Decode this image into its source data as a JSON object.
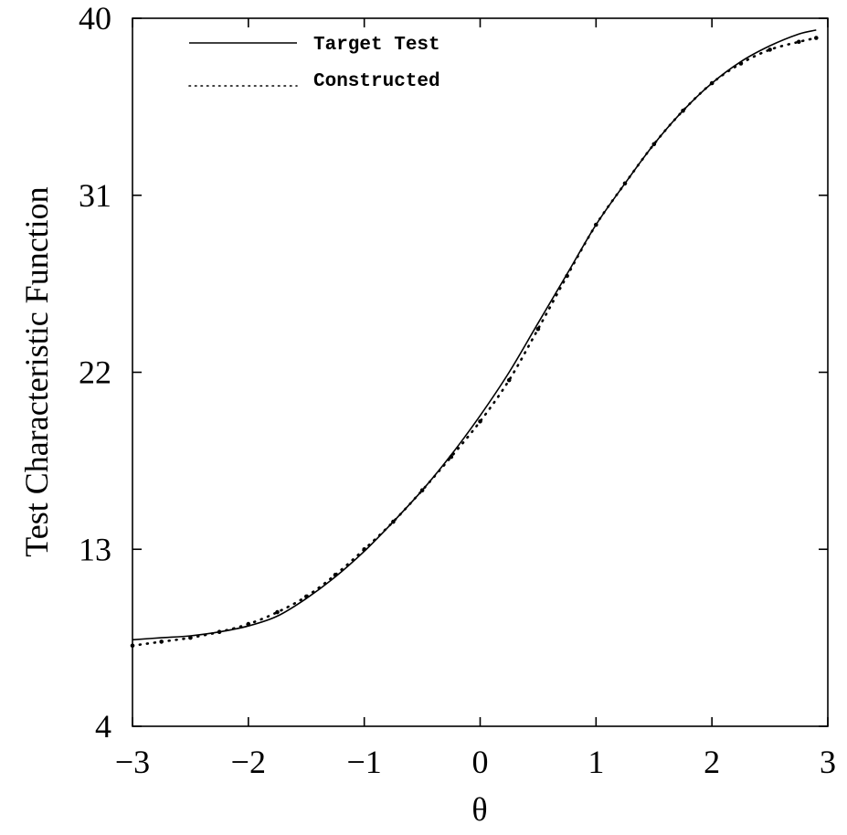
{
  "chart_data": {
    "type": "line",
    "title": "",
    "xlabel": "θ",
    "ylabel": "Test Characteristic Function",
    "xlim": [
      -3,
      3
    ],
    "ylim": [
      4,
      40
    ],
    "xticks": [
      -3,
      -2,
      -1,
      0,
      1,
      2,
      3
    ],
    "xtick_labels": [
      "−3",
      "−2",
      "−1",
      "0",
      "1",
      "2",
      "3"
    ],
    "yticks": [
      4,
      13,
      22,
      31,
      40
    ],
    "ytick_labels": [
      "4",
      "13",
      "22",
      "31",
      "40"
    ],
    "grid": false,
    "legend_position": "top-left",
    "x": [
      -3.0,
      -2.75,
      -2.5,
      -2.25,
      -2.0,
      -1.75,
      -1.5,
      -1.25,
      -1.0,
      -0.75,
      -0.5,
      -0.25,
      0.0,
      0.25,
      0.5,
      0.75,
      1.0,
      1.25,
      1.5,
      1.75,
      2.0,
      2.25,
      2.5,
      2.75,
      2.9
    ],
    "series": [
      {
        "name": "Target Test",
        "style": "solid",
        "color": "#000000",
        "values": [
          8.4,
          8.5,
          8.6,
          8.8,
          9.1,
          9.6,
          10.5,
          11.6,
          12.9,
          14.4,
          16.0,
          17.8,
          19.8,
          22.0,
          24.5,
          27.0,
          29.5,
          31.6,
          33.6,
          35.3,
          36.7,
          37.8,
          38.6,
          39.2,
          39.4
        ]
      },
      {
        "name": "Constructed",
        "style": "dotted",
        "color": "#000000",
        "values": [
          8.1,
          8.3,
          8.5,
          8.8,
          9.2,
          9.8,
          10.6,
          11.7,
          13.0,
          14.4,
          16.0,
          17.7,
          19.5,
          21.6,
          24.2,
          26.9,
          29.5,
          31.6,
          33.6,
          35.3,
          36.7,
          37.7,
          38.4,
          38.8,
          39.0
        ]
      }
    ]
  }
}
